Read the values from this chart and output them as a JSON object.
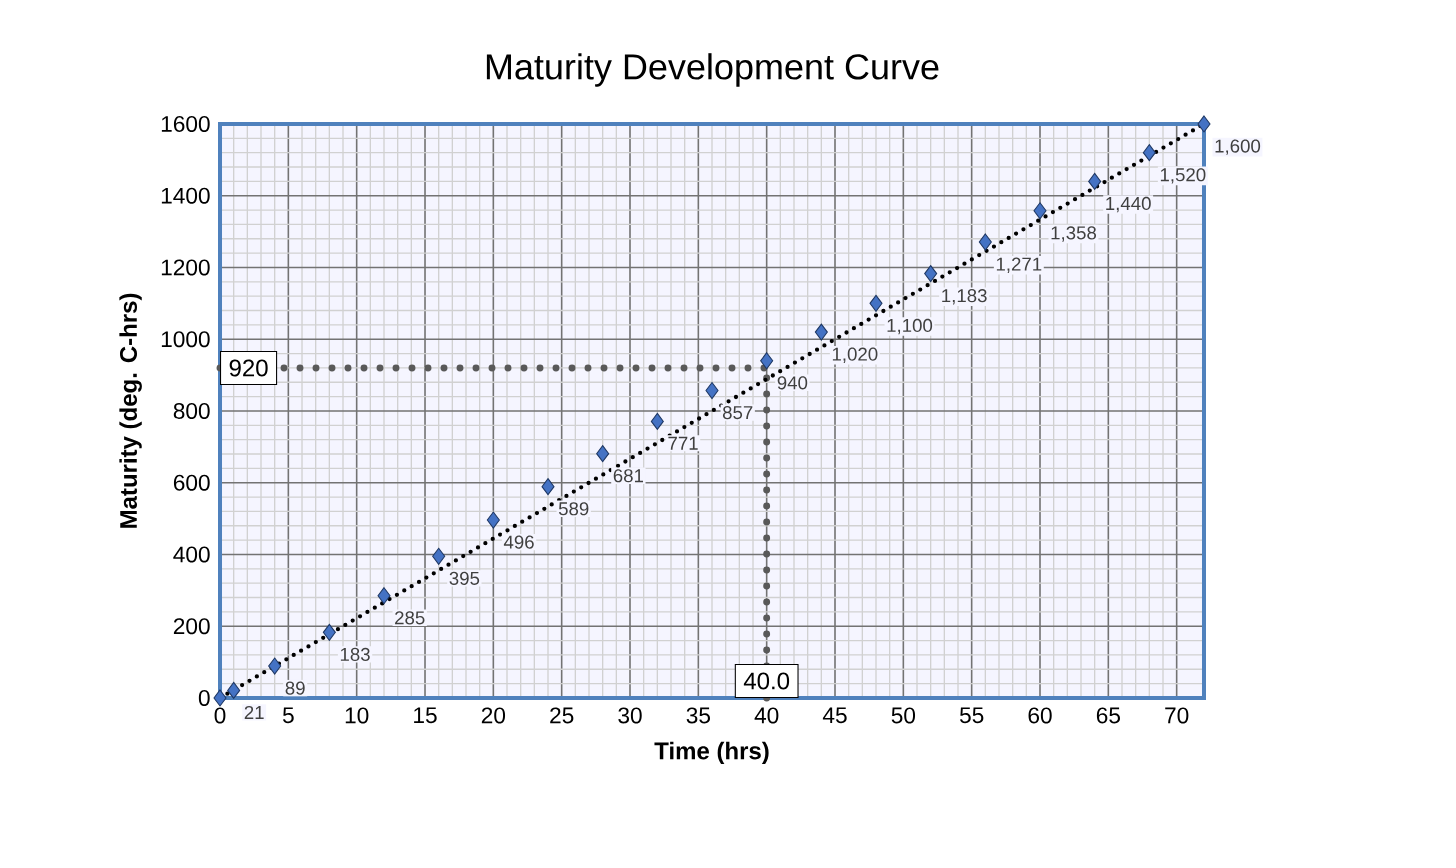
{
  "chart_data": {
    "type": "scatter",
    "title": "Maturity Development Curve",
    "xlabel": "Time (hrs)",
    "ylabel": "Maturity (deg. C-hrs)",
    "xlim": [
      0,
      72
    ],
    "ylim": [
      0,
      1600
    ],
    "xticks": [
      0,
      5,
      10,
      15,
      20,
      25,
      30,
      35,
      40,
      45,
      50,
      55,
      60,
      65,
      70
    ],
    "yticks": [
      0,
      200,
      400,
      600,
      800,
      1000,
      1200,
      1400,
      1600
    ],
    "grid": true,
    "series": [
      {
        "color": "#4472c4",
        "marker": "diamond",
        "x": [
          0,
          1,
          4,
          8,
          12,
          16,
          20,
          24,
          28,
          32,
          36,
          40,
          44,
          48,
          52,
          56,
          60,
          64,
          68,
          72
        ],
        "values": [
          0,
          21,
          89,
          183,
          285,
          395,
          496,
          589,
          681,
          771,
          857,
          940,
          1020,
          1100,
          1183,
          1271,
          1358,
          1440,
          1520,
          1600
        ],
        "value_labels": [
          null,
          "21",
          "89",
          "183",
          "285",
          "395",
          "496",
          "589",
          "681",
          "771",
          "857",
          "940",
          "1,020",
          "1,100",
          "1,183",
          "1,271",
          "1,358",
          "1,440",
          "1,520",
          "1,600"
        ]
      },
      {
        "type": "line",
        "color": "#000000",
        "line_style": "dotted",
        "marker": "none",
        "x": [
          0,
          72
        ],
        "values": [
          0,
          1600
        ]
      }
    ],
    "ref_lines": [
      {
        "axis": "y",
        "value": 920,
        "label": "920",
        "color": "#595959",
        "line_style": "dotted"
      },
      {
        "axis": "x",
        "value": 40,
        "label": "40.0",
        "color": "#595959",
        "line_style": "dotted"
      }
    ]
  }
}
